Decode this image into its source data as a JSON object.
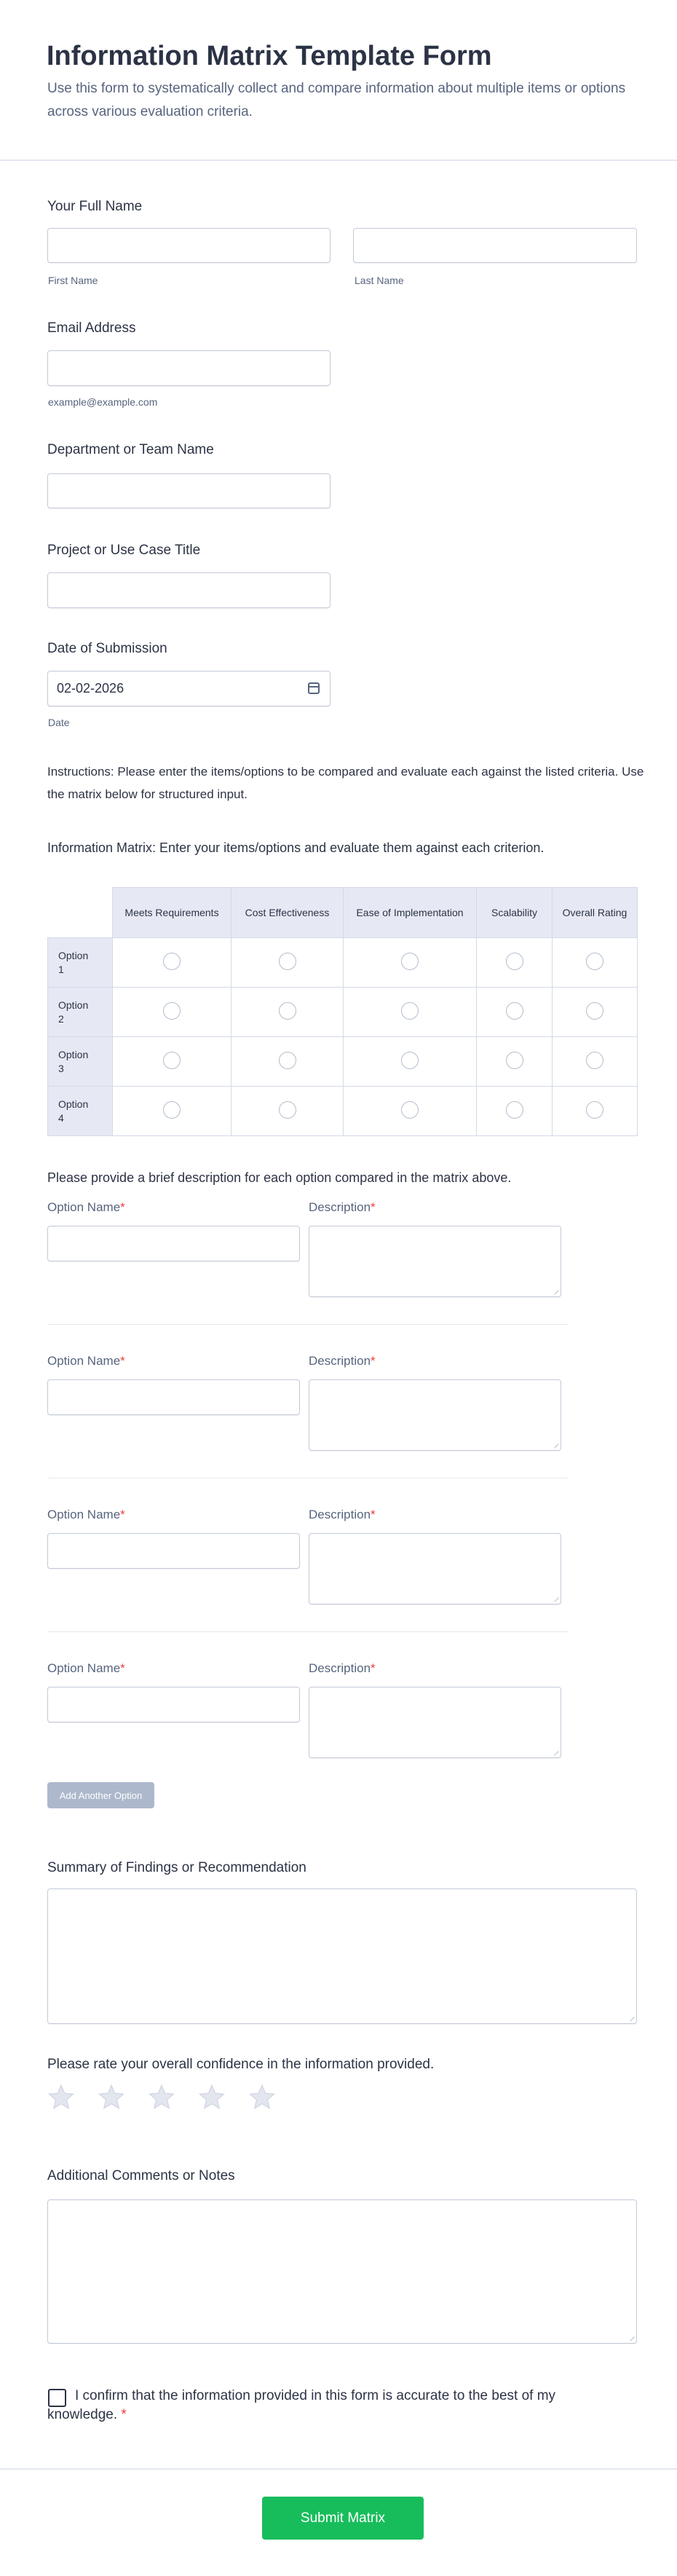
{
  "header": {
    "title": "Information Matrix Template Form",
    "subtitle": "Use this form to systematically collect and compare information about multiple items or options across various evaluation criteria."
  },
  "full_name": {
    "label": "Your Full Name",
    "first_sublabel": "First Name",
    "last_sublabel": "Last Name",
    "first_value": "",
    "last_value": ""
  },
  "email": {
    "label": "Email Address",
    "sublabel": "example@example.com",
    "value": ""
  },
  "department": {
    "label": "Department or Team Name",
    "value": ""
  },
  "project": {
    "label": "Project or Use Case Title",
    "value": ""
  },
  "date": {
    "label": "Date of Submission",
    "value": "02-02-2026",
    "sublabel": "Date",
    "icon": "calendar-icon"
  },
  "instructions": "Instructions: Please enter the items/options to be compared and evaluate each against the listed criteria. Use the matrix below for structured input.",
  "matrix": {
    "label": "Information Matrix: Enter your items/options and evaluate them against each criterion.",
    "columns": [
      "Meets Requirements",
      "Cost Effectiveness",
      "Ease of Implementation",
      "Scalability",
      "Overall Rating"
    ],
    "rows": [
      "Option 1",
      "Option 2",
      "Option 3",
      "Option 4"
    ]
  },
  "options_section": {
    "heading": "Please provide a brief description for each option compared in the matrix above.",
    "name_label": "Option Name",
    "description_label": "Description",
    "required_mark": "*",
    "count": 4,
    "add_button": "Add Another Option"
  },
  "summary": {
    "label": "Summary of Findings or Recommendation",
    "value": ""
  },
  "rating": {
    "label": "Please rate your overall confidence in the information provided.",
    "max": 5,
    "value": 0,
    "star_color": "#e3e6ef"
  },
  "comments": {
    "label": "Additional Comments or Notes",
    "value": ""
  },
  "confirm": {
    "text": "I confirm that the information provided in this form is accurate to the best of my knowledge.",
    "required_mark": "*",
    "checked": false
  },
  "submit": {
    "label": "Submit Matrix",
    "color": "#18bd5b"
  }
}
